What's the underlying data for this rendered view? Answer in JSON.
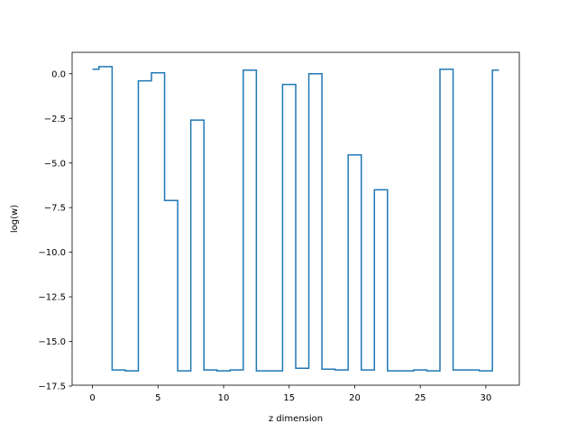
{
  "chart_data": {
    "type": "line",
    "drawstyle": "steps-mid",
    "title": "",
    "xlabel": "z dimension",
    "ylabel": "log(w)",
    "xlim": [
      -1.55,
      32.55
    ],
    "ylim": [
      -17.45,
      1.2
    ],
    "xticks": [
      0,
      5,
      10,
      15,
      20,
      25,
      30
    ],
    "yticks": [
      0.0,
      -2.5,
      -5.0,
      -7.5,
      -10.0,
      -12.5,
      -15.0,
      -17.5
    ],
    "xtick_labels": [
      "0",
      "5",
      "10",
      "15",
      "20",
      "25",
      "30"
    ],
    "ytick_labels": [
      "0.0",
      "−2.5",
      "−5.0",
      "−7.5",
      "−10.0",
      "−12.5",
      "−15.0",
      "−17.5"
    ],
    "grid": false,
    "legend": "none",
    "series": [
      {
        "color": "#1f77b4",
        "x": [
          0,
          1,
          2,
          3,
          4,
          5,
          6,
          7,
          8,
          9,
          10,
          11,
          12,
          13,
          14,
          15,
          16,
          17,
          18,
          19,
          20,
          21,
          22,
          23,
          24,
          25,
          26,
          27,
          28,
          29,
          30,
          31
        ],
        "y": [
          0.25,
          0.4,
          -16.6,
          -16.65,
          -0.4,
          0.05,
          -7.1,
          -16.65,
          -2.6,
          -16.6,
          -16.65,
          -16.6,
          0.2,
          -16.65,
          -16.65,
          -0.6,
          -16.5,
          0.0,
          -16.55,
          -16.6,
          -4.55,
          -16.6,
          -6.5,
          -16.65,
          -16.65,
          -16.6,
          -16.65,
          0.25,
          -16.6,
          -16.6,
          -16.65,
          0.2
        ]
      }
    ]
  }
}
